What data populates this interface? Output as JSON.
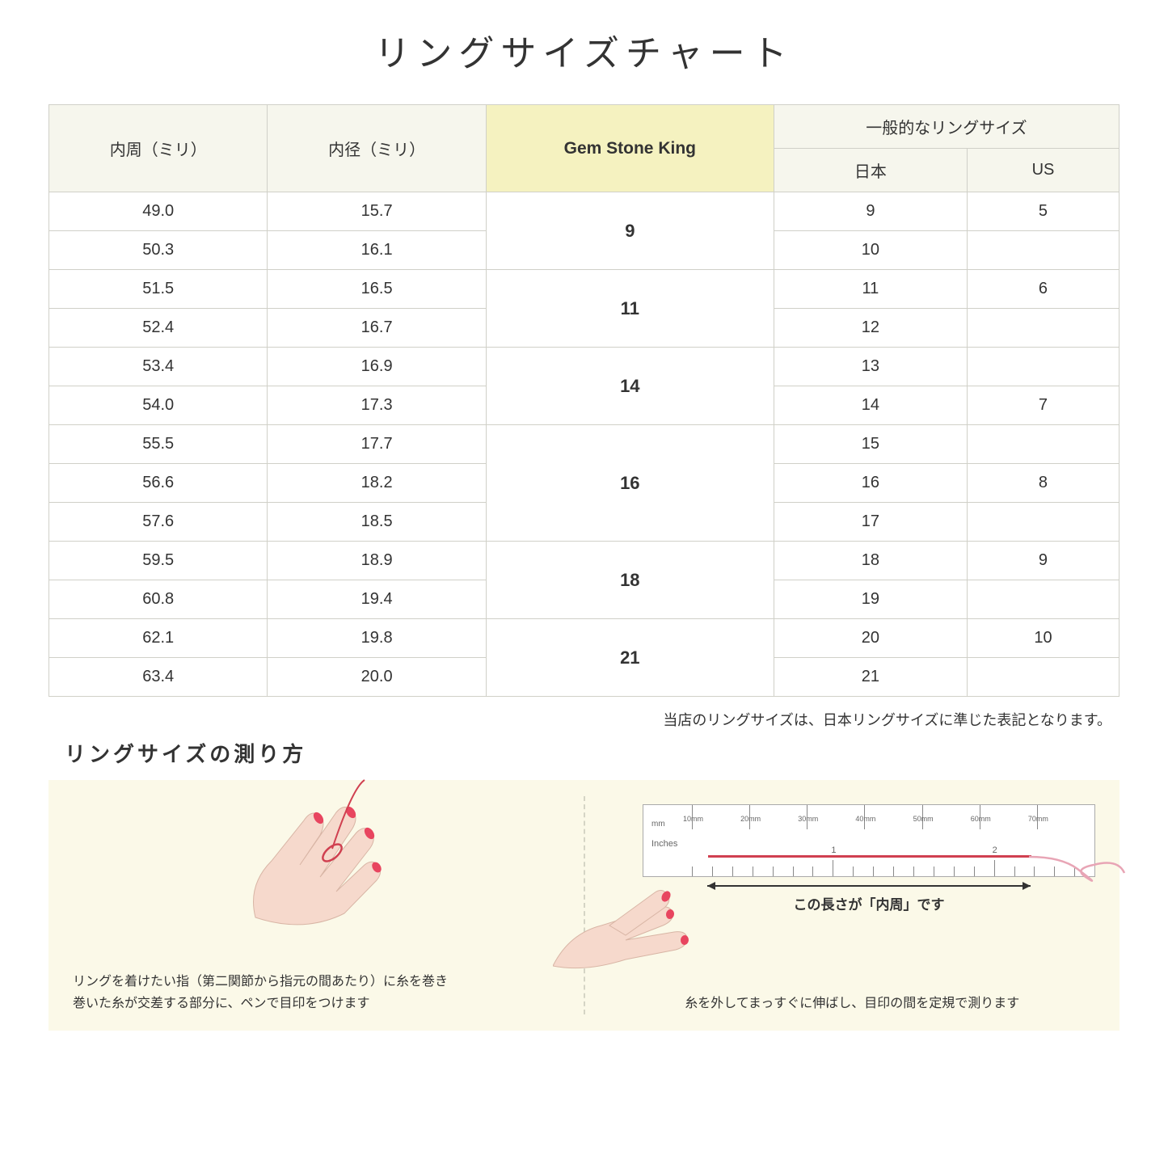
{
  "title": "リングサイズチャート",
  "headers": {
    "circumference": "内周（ミリ）",
    "diameter": "内径（ミリ）",
    "gsk": "Gem Stone King",
    "general": "一般的なリングサイズ",
    "japan": "日本",
    "us": "US"
  },
  "rows": [
    {
      "circ": "49.0",
      "diam": "15.7",
      "gsk": "9",
      "gsk_span": 2,
      "jp": "9",
      "us": "5"
    },
    {
      "circ": "50.3",
      "diam": "16.1",
      "jp": "10",
      "us": ""
    },
    {
      "circ": "51.5",
      "diam": "16.5",
      "gsk": "11",
      "gsk_span": 2,
      "jp": "11",
      "us": "6"
    },
    {
      "circ": "52.4",
      "diam": "16.7",
      "jp": "12",
      "us": ""
    },
    {
      "circ": "53.4",
      "diam": "16.9",
      "gsk": "14",
      "gsk_span": 2,
      "jp": "13",
      "us": ""
    },
    {
      "circ": "54.0",
      "diam": "17.3",
      "jp": "14",
      "us": "7"
    },
    {
      "circ": "55.5",
      "diam": "17.7",
      "gsk": "16",
      "gsk_span": 3,
      "jp": "15",
      "us": ""
    },
    {
      "circ": "56.6",
      "diam": "18.2",
      "jp": "16",
      "us": "8"
    },
    {
      "circ": "57.6",
      "diam": "18.5",
      "jp": "17",
      "us": ""
    },
    {
      "circ": "59.5",
      "diam": "18.9",
      "gsk": "18",
      "gsk_span": 2,
      "jp": "18",
      "us": "9"
    },
    {
      "circ": "60.8",
      "diam": "19.4",
      "jp": "19",
      "us": ""
    },
    {
      "circ": "62.1",
      "diam": "19.8",
      "gsk": "21",
      "gsk_span": 2,
      "jp": "20",
      "us": "10"
    },
    {
      "circ": "63.4",
      "diam": "20.0",
      "jp": "21",
      "us": ""
    }
  ],
  "note": "当店のリングサイズは、日本リングサイズに準じた表記となります。",
  "measure_title": "リングサイズの測り方",
  "instruction_left_1": "リングを着けたい指（第二関節から指元の間あたり）に糸を巻き",
  "instruction_left_2": "巻いた糸が交差する部分に、ペンで目印をつけます",
  "instruction_right": "糸を外してまっすぐに伸ばし、目印の間を定規で測ります",
  "arrow_caption": "この長さが「内周」です",
  "ruler": {
    "mm_label": "mm",
    "in_label": "Inches",
    "mm_ticks": [
      "10mm",
      "20mm",
      "30mm",
      "40mm",
      "50mm",
      "60mm",
      "70mm"
    ],
    "in_majors": [
      "1",
      "2"
    ]
  },
  "colors": {
    "header_bg": "#f6f6ed",
    "highlight_bg": "#f5f2c0",
    "border": "#d0d0c8",
    "instruction_bg": "#fbf9e8",
    "thread": "#d04050",
    "skin": "#f6d9cc",
    "nail": "#e8455f"
  }
}
